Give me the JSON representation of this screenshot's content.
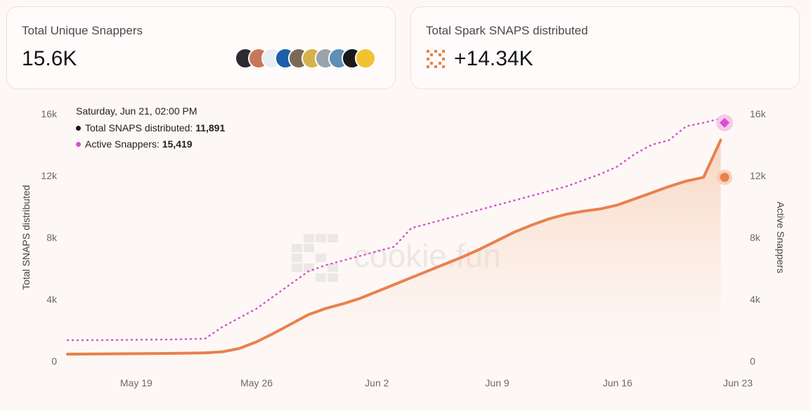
{
  "cards": {
    "unique_snappers": {
      "title": "Total Unique Snappers",
      "value": "15.6K"
    },
    "spark_snaps": {
      "title": "Total Spark SNAPS distributed",
      "value": "+14.34K"
    }
  },
  "avatars": [
    {
      "color": "#2b2b33",
      "ring": "#ffffff"
    },
    {
      "color": "#c9775a",
      "ring": "#ffffff"
    },
    {
      "color": "#e8eef4",
      "ring": "#ffffff"
    },
    {
      "color": "#1d5fa8",
      "ring": "#ffffff"
    },
    {
      "color": "#7a6a55",
      "ring": "#ffffff"
    },
    {
      "color": "#d6b24a",
      "ring": "#ffffff"
    },
    {
      "color": "#9aa3ab",
      "ring": "#ffffff"
    },
    {
      "color": "#5e8fb8",
      "ring": "#ffffff"
    },
    {
      "color": "#1a1a1a",
      "ring": "#ffffff"
    },
    {
      "color": "#f2c230",
      "ring": "#ffffff"
    }
  ],
  "tooltip": {
    "date": "Saturday, Jun 21, 02:00 PM",
    "total_label": "Total SNAPS distributed:",
    "total_value": "11,891",
    "active_label": "Active Snappers:",
    "active_value": "15,419"
  },
  "watermark": "cookie.fun",
  "colors": {
    "orange": "#e8814d",
    "magenta": "#d94fd0",
    "axis_text": "#6a6a6a"
  },
  "chart_data": {
    "type": "line",
    "x_tick_labels": [
      "May 19",
      "May 26",
      "Jun 2",
      "Jun 9",
      "Jun 16",
      "Jun 23"
    ],
    "x_range_days": [
      "May 15",
      "Jun 23"
    ],
    "ylabel_left": "Total SNAPS distributed",
    "ylabel_right": "Active Snappers",
    "ylim_left": [
      0,
      16000
    ],
    "ylim_right": [
      0,
      16000
    ],
    "yticks_left": [
      "0",
      "4k",
      "8k",
      "12k",
      "16k"
    ],
    "yticks_right": [
      "0",
      "4k",
      "8k",
      "12k",
      "16k"
    ],
    "grid": false,
    "highlight": {
      "day": "Jun 21",
      "total": 11891,
      "active": 15419
    },
    "series": [
      {
        "name": "Total SNAPS distributed",
        "axis": "left",
        "style": "solid-area",
        "points": [
          [
            "May 15",
            450
          ],
          [
            "May 17",
            470
          ],
          [
            "May 19",
            480
          ],
          [
            "May 21",
            500
          ],
          [
            "May 23",
            530
          ],
          [
            "May 24",
            600
          ],
          [
            "May 25",
            820
          ],
          [
            "May 26",
            1250
          ],
          [
            "May 27",
            1800
          ],
          [
            "May 28",
            2400
          ],
          [
            "May 29",
            3000
          ],
          [
            "May 30",
            3400
          ],
          [
            "May 31",
            3700
          ],
          [
            "Jun 1",
            4050
          ],
          [
            "Jun 2",
            4500
          ],
          [
            "Jun 3",
            4950
          ],
          [
            "Jun 4",
            5400
          ],
          [
            "Jun 5",
            5850
          ],
          [
            "Jun 6",
            6300
          ],
          [
            "Jun 7",
            6750
          ],
          [
            "Jun 8",
            7250
          ],
          [
            "Jun 9",
            7800
          ],
          [
            "Jun 10",
            8350
          ],
          [
            "Jun 11",
            8800
          ],
          [
            "Jun 12",
            9200
          ],
          [
            "Jun 13",
            9500
          ],
          [
            "Jun 14",
            9700
          ],
          [
            "Jun 15",
            9850
          ],
          [
            "Jun 16",
            10100
          ],
          [
            "Jun 17",
            10500
          ],
          [
            "Jun 18",
            10900
          ],
          [
            "Jun 19",
            11300
          ],
          [
            "Jun 20",
            11650
          ],
          [
            "Jun 21",
            11891
          ],
          [
            "Jun 22",
            14300
          ]
        ]
      },
      {
        "name": "Active Snappers",
        "axis": "right",
        "style": "dotted",
        "points": [
          [
            "May 15",
            1350
          ],
          [
            "May 17",
            1360
          ],
          [
            "May 19",
            1380
          ],
          [
            "May 21",
            1400
          ],
          [
            "May 23",
            1450
          ],
          [
            "May 24",
            2200
          ],
          [
            "May 25",
            2800
          ],
          [
            "May 26",
            3400
          ],
          [
            "May 27",
            4200
          ],
          [
            "May 28",
            5000
          ],
          [
            "May 29",
            5800
          ],
          [
            "May 30",
            6200
          ],
          [
            "May 31",
            6500
          ],
          [
            "Jun 1",
            6800
          ],
          [
            "Jun 2",
            7100
          ],
          [
            "Jun 3",
            7400
          ],
          [
            "Jun 4",
            8600
          ],
          [
            "Jun 5",
            8900
          ],
          [
            "Jun 6",
            9200
          ],
          [
            "Jun 7",
            9500
          ],
          [
            "Jun 8",
            9800
          ],
          [
            "Jun 9",
            10100
          ],
          [
            "Jun 10",
            10400
          ],
          [
            "Jun 11",
            10700
          ],
          [
            "Jun 12",
            11000
          ],
          [
            "Jun 13",
            11300
          ],
          [
            "Jun 14",
            11700
          ],
          [
            "Jun 15",
            12100
          ],
          [
            "Jun 16",
            12600
          ],
          [
            "Jun 17",
            13400
          ],
          [
            "Jun 18",
            14000
          ],
          [
            "Jun 19",
            14300
          ],
          [
            "Jun 20",
            15200
          ],
          [
            "Jun 21",
            15419
          ],
          [
            "Jun 22",
            15700
          ]
        ]
      }
    ]
  }
}
